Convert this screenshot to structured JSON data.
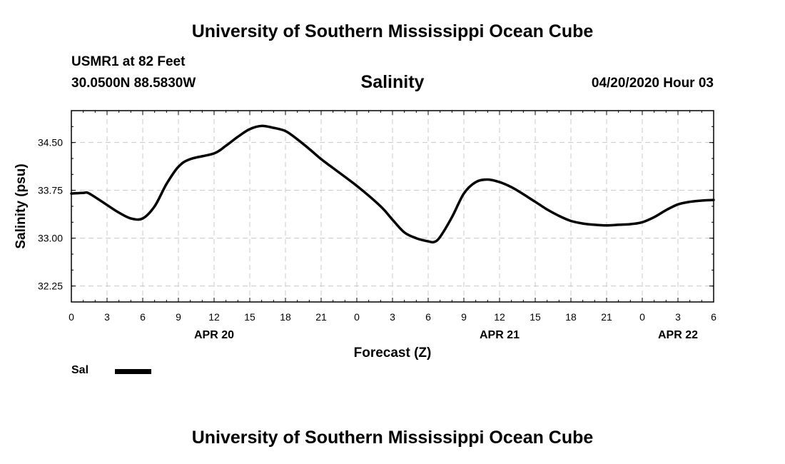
{
  "header": {
    "title": "University of Southern Mississippi Ocean Cube",
    "station": "USMR1 at 82 Feet",
    "coordinates": "30.0500N 88.5830W",
    "variable": "Salinity",
    "datetime": "04/20/2020 Hour 03"
  },
  "footer": {
    "title": "University of Southern Mississippi Ocean Cube"
  },
  "legend": {
    "label": "Sal",
    "color": "#000000"
  },
  "chart_data": {
    "type": "line",
    "title": "Salinity",
    "xlabel": "Forecast (Z)",
    "ylabel": "Salinity (psu)",
    "x_unit": "forecast hour",
    "xlim": [
      0,
      54
    ],
    "ylim": [
      32.0,
      35.0
    ],
    "yticks": [
      32.25,
      33.0,
      33.75,
      34.5
    ],
    "ytick_labels": [
      "32.25",
      "33.00",
      "33.75",
      "34.50"
    ],
    "xticks": [
      0,
      3,
      6,
      9,
      12,
      15,
      18,
      21,
      24,
      27,
      30,
      33,
      36,
      39,
      42,
      45,
      48,
      51,
      54
    ],
    "xtick_labels": [
      "0",
      "3",
      "6",
      "9",
      "12",
      "15",
      "18",
      "21",
      "0",
      "3",
      "6",
      "9",
      "12",
      "15",
      "18",
      "21",
      "0",
      "3",
      "6"
    ],
    "date_labels": [
      {
        "x": 12,
        "label": "APR 20"
      },
      {
        "x": 36,
        "label": "APR 21"
      },
      {
        "x": 51,
        "label": "APR 22"
      }
    ],
    "grid": true,
    "legend_position": "bottom-left",
    "series": [
      {
        "name": "Sal",
        "color": "#000000",
        "x": [
          0,
          1,
          1.5,
          3,
          4,
          5,
          6,
          7,
          8,
          9,
          10,
          12,
          13,
          14,
          15,
          16,
          17,
          18,
          19,
          20,
          21,
          22,
          24,
          26,
          27,
          28,
          29,
          30,
          30.5,
          31,
          32,
          33,
          34,
          35,
          36,
          37,
          38,
          39,
          40,
          41,
          42,
          43,
          44,
          45,
          46,
          47,
          48,
          49,
          50,
          51,
          52,
          53,
          54
        ],
        "y": [
          33.7,
          33.71,
          33.7,
          33.52,
          33.4,
          33.31,
          33.31,
          33.5,
          33.85,
          34.12,
          34.24,
          34.33,
          34.45,
          34.59,
          34.71,
          34.76,
          34.73,
          34.68,
          34.55,
          34.4,
          34.24,
          34.1,
          33.82,
          33.5,
          33.29,
          33.09,
          33.0,
          32.95,
          32.94,
          33.02,
          33.33,
          33.7,
          33.88,
          33.92,
          33.88,
          33.8,
          33.69,
          33.57,
          33.45,
          33.35,
          33.27,
          33.23,
          33.21,
          33.2,
          33.21,
          33.22,
          33.25,
          33.33,
          33.44,
          33.53,
          33.57,
          33.59,
          33.6
        ]
      }
    ]
  }
}
